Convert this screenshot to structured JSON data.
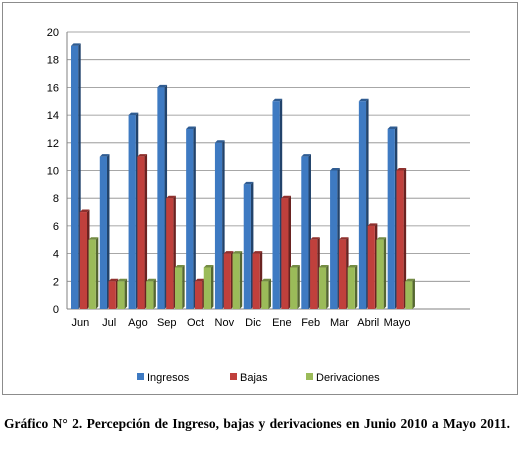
{
  "chart_data": {
    "type": "bar",
    "categories": [
      "Jun",
      "Jul",
      "Ago",
      "Sep",
      "Oct",
      "Nov",
      "Dic",
      "Ene",
      "Feb",
      "Mar",
      "Abril",
      "Mayo"
    ],
    "series": [
      {
        "name": "Ingresos",
        "color": "#3e7ac2",
        "values": [
          19,
          11,
          14,
          16,
          13,
          12,
          9,
          15,
          11,
          10,
          15,
          13
        ]
      },
      {
        "name": "Bajas",
        "color": "#c0403c",
        "values": [
          7,
          2,
          11,
          8,
          2,
          4,
          4,
          8,
          5,
          5,
          6,
          10
        ]
      },
      {
        "name": "Derivaciones",
        "color": "#9bbb59",
        "values": [
          5,
          2,
          2,
          3,
          3,
          4,
          2,
          3,
          3,
          3,
          5,
          2
        ]
      }
    ],
    "ylim": [
      0,
      20
    ],
    "yticks": [
      0,
      2,
      4,
      6,
      8,
      10,
      12,
      14,
      16,
      18,
      20
    ],
    "grid": true,
    "legend": "bottom",
    "title": "",
    "xlabel": "",
    "ylabel": ""
  },
  "caption": "Gráfico N° 2. Percepción  de Ingreso, bajas y derivaciones en Junio 2010 a Mayo 2011."
}
